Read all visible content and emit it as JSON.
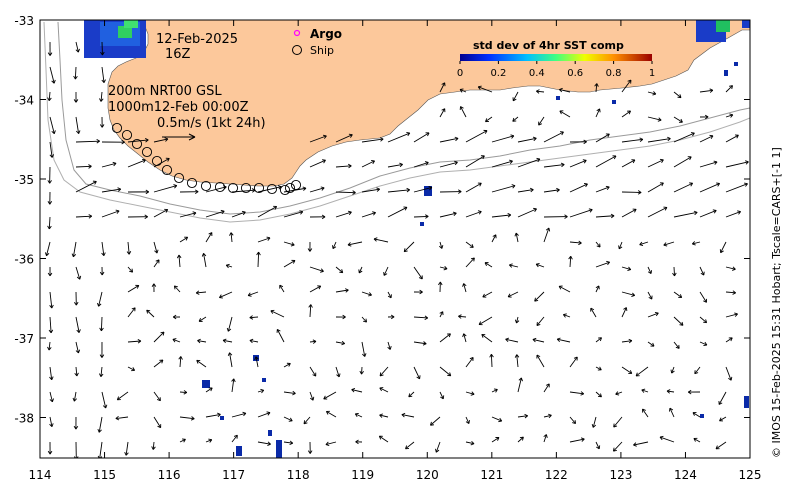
{
  "map": {
    "date_label": "12-Feb-2025",
    "time_label": "16Z",
    "legend_argo": "Argo",
    "legend_ship": "Ship",
    "depth_label_1": "200m  NRT00 GSL",
    "depth_label_2": "1000m12-Feb 00:00Z",
    "scale_label": "0.5m/s (1kt 24h)",
    "colorbar_title": "std dev of 4hr SST comp",
    "colorbar_ticks": [
      "0",
      "0.2",
      "0.4",
      "0.6",
      "0.8",
      "1"
    ],
    "credit": "© IMOS 15-Feb-2025 15:31 Hobart; Tscale=CARS+[-1 1]",
    "x_ticks": [
      "114",
      "115",
      "116",
      "117",
      "118",
      "119",
      "120",
      "121",
      "122",
      "123",
      "124",
      "125"
    ],
    "y_ticks": [
      "-33",
      "-34",
      "-35",
      "-36",
      "-37",
      "-38"
    ],
    "colors": {
      "land": "#fcc89b",
      "ship_marker": "#000000",
      "argo_marker": "#ff00ff",
      "contour": "#9a9a9a",
      "speck": "#0a2aa8"
    }
  }
}
